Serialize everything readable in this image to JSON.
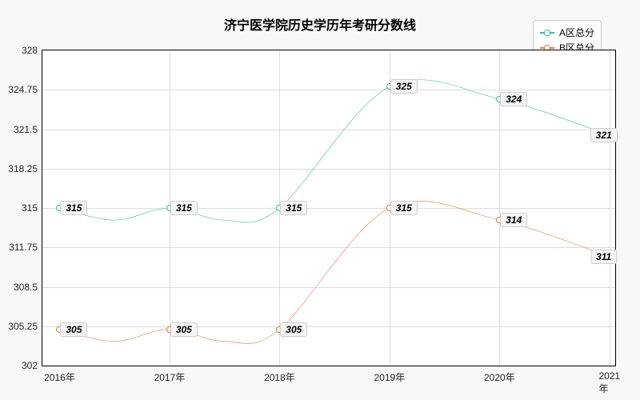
{
  "chart": {
    "title": "济宁医学院历史学历年考研分数线",
    "title_fontsize": 16,
    "background_color": "#f8f8f8",
    "plot_background_color": "#ffffff",
    "grid_color": "#dddddd",
    "border_color": "#000000",
    "xlim": [
      2016,
      2021
    ],
    "ylim": [
      302,
      328
    ],
    "ytick_step": 3.25,
    "x_labels": [
      "2016年",
      "2017年",
      "2018年",
      "2019年",
      "2020年",
      "2021年"
    ],
    "y_labels": [
      "302",
      "305.25",
      "308.5",
      "311.75",
      "315",
      "318.25",
      "321.5",
      "324.75",
      "328"
    ],
    "series": [
      {
        "name": "A区总分",
        "color": "#3bb8a1",
        "values": [
          315,
          315,
          315,
          325,
          324,
          321
        ],
        "labels": [
          "315",
          "315",
          "315",
          "325",
          "324",
          "321"
        ]
      },
      {
        "name": "B区总分",
        "color": "#e37844",
        "values": [
          305,
          305,
          305,
          315,
          314,
          311
        ],
        "labels": [
          "305",
          "305",
          "305",
          "315",
          "314",
          "311"
        ]
      }
    ],
    "label_fontsize": 12,
    "line_width": 2,
    "marker_size": 8,
    "legend_position": "top-right"
  }
}
